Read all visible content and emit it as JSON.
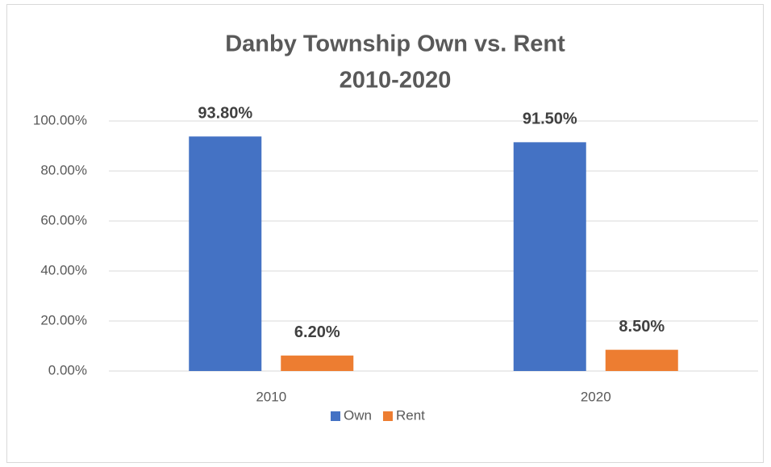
{
  "chart_data": {
    "type": "bar",
    "title": [
      "Danby Township Own vs. Rent",
      "2010-2020"
    ],
    "categories": [
      "2010",
      "2020"
    ],
    "series": [
      {
        "name": "Own",
        "color": "#4472c4",
        "values": [
          93.8,
          91.5
        ],
        "value_labels": [
          "93.80%",
          "91.50%"
        ]
      },
      {
        "name": "Rent",
        "color": "#ed7d31",
        "values": [
          6.2,
          8.5
        ],
        "value_labels": [
          "6.20%",
          "8.50%"
        ]
      }
    ],
    "ylim": [
      0,
      100
    ],
    "yticks": [
      {
        "value": 0,
        "label": "0.00%"
      },
      {
        "value": 20,
        "label": "20.00%"
      },
      {
        "value": 40,
        "label": "40.00%"
      },
      {
        "value": 60,
        "label": "60.00%"
      },
      {
        "value": 80,
        "label": "80.00%"
      },
      {
        "value": 100,
        "label": "100.00%"
      }
    ],
    "grid": true,
    "legend": "bottom"
  }
}
